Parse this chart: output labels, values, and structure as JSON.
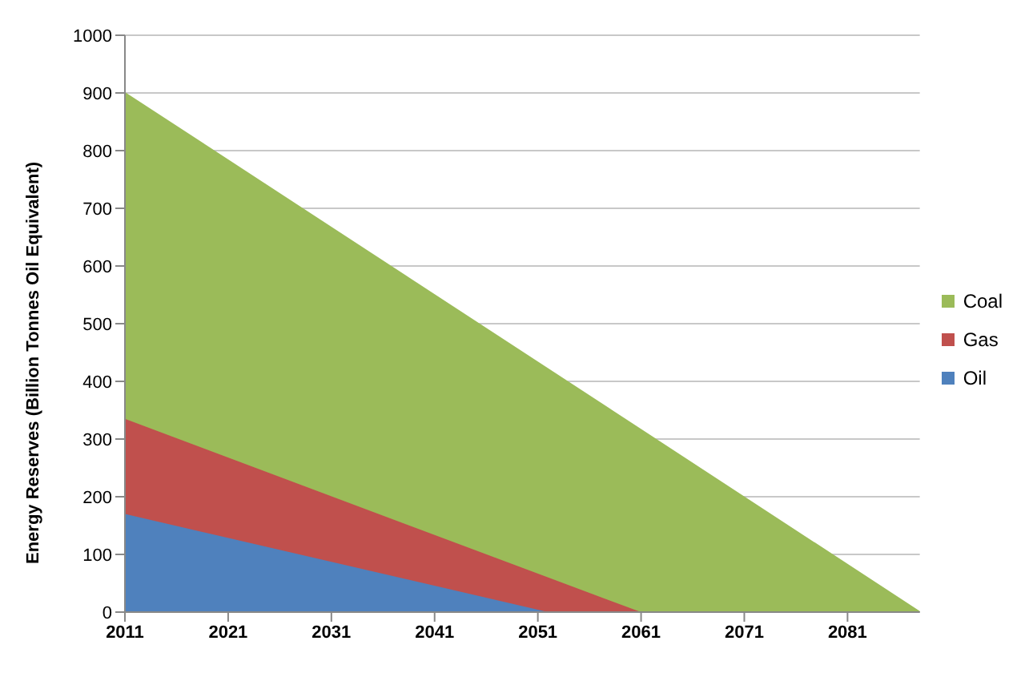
{
  "chart_data": {
    "type": "area",
    "stacked": true,
    "ylabel": "Energy Reserves (Billion Tonnes Oil Equivalent)",
    "x": [
      2011,
      2052,
      2061,
      2088
    ],
    "xlim": [
      2011,
      2088
    ],
    "xticks": [
      2011,
      2021,
      2031,
      2041,
      2051,
      2061,
      2071,
      2081
    ],
    "ylim": [
      0,
      1000
    ],
    "yticks": [
      0,
      100,
      200,
      300,
      400,
      500,
      600,
      700,
      800,
      900,
      1000
    ],
    "grid": "y",
    "legend": "right",
    "series": [
      {
        "name": "Oil",
        "color": "#4f81bd",
        "values": [
          170,
          0,
          0,
          0
        ]
      },
      {
        "name": "Gas",
        "color": "#c0504d",
        "values": [
          165,
          60,
          0,
          0
        ]
      },
      {
        "name": "Coal",
        "color": "#9bbb59",
        "values": [
          565,
          361,
          316,
          0
        ]
      }
    ]
  }
}
